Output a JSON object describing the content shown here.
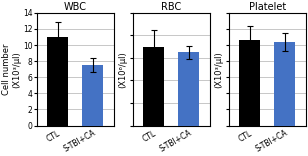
{
  "chart_data": [
    {
      "type": "bar",
      "title": "WBC",
      "y_label": "Cell number\n(X10³/μl)",
      "categories": [
        "CTL",
        "S-TBI+CA"
      ],
      "values": [
        11.0,
        7.5
      ],
      "errors": [
        1.8,
        0.9
      ],
      "colors": [
        "black",
        "#4472c4"
      ],
      "ylim": [
        0,
        14
      ],
      "yticks": [
        0,
        2,
        4,
        6,
        8,
        10,
        12,
        14
      ],
      "grid": true
    },
    {
      "type": "bar",
      "title": "RBC",
      "y_label": "(X10⁶/μl)",
      "categories": [
        "CTL",
        "S-TBI+CA"
      ],
      "values": [
        7.0,
        6.5
      ],
      "errors": [
        1.5,
        0.6
      ],
      "colors": [
        "black",
        "#4472c4"
      ],
      "ylim": [
        0,
        10
      ],
      "yticks": [
        0,
        2,
        4,
        6,
        8,
        10
      ],
      "grid": true,
      "tick_labels": "x"
    },
    {
      "type": "bar",
      "title": "Platelet",
      "y_label": "(X10³/μl)",
      "categories": [
        "CTL",
        "S-TBI+CA"
      ],
      "values": [
        1060,
        1040
      ],
      "errors": [
        180,
        110
      ],
      "colors": [
        "black",
        "#4472c4"
      ],
      "ylim": [
        0,
        1400
      ],
      "yticks": [
        0,
        200,
        400,
        600,
        800,
        1000,
        1200,
        1400
      ],
      "grid": true,
      "tick_labels": "x"
    }
  ]
}
